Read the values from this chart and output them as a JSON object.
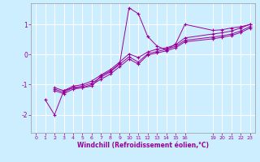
{
  "xlabel": "Windchill (Refroidissement éolien,°C)",
  "background_color": "#cceeff",
  "line_color": "#990099",
  "grid_color": "#aaddcc",
  "xlim": [
    -0.5,
    23.5
  ],
  "ylim": [
    -2.6,
    1.7
  ],
  "yticks": [
    -2,
    -1,
    0,
    1
  ],
  "xticks": [
    0,
    1,
    2,
    3,
    4,
    5,
    6,
    7,
    8,
    9,
    10,
    11,
    12,
    13,
    14,
    15,
    16,
    19,
    20,
    21,
    22,
    23
  ],
  "series": [
    {
      "x": [
        1,
        2,
        3,
        4,
        5,
        6,
        7,
        8,
        9,
        10,
        11,
        12,
        13,
        14,
        15,
        16,
        19,
        20,
        21,
        22,
        23
      ],
      "y": [
        -1.5,
        -2.0,
        -1.2,
        -1.1,
        -1.1,
        -1.05,
        -0.7,
        -0.55,
        -0.3,
        1.55,
        1.35,
        0.6,
        0.28,
        0.15,
        0.35,
        1.0,
        0.8,
        0.82,
        0.88,
        0.92,
        1.0
      ]
    },
    {
      "x": [
        2,
        3,
        4,
        5,
        6,
        7,
        8,
        9,
        10,
        11,
        12,
        13,
        14,
        15,
        16,
        19,
        20,
        21,
        22,
        23
      ],
      "y": [
        -1.1,
        -1.2,
        -1.05,
        -1.0,
        -0.88,
        -0.68,
        -0.5,
        -0.25,
        0.02,
        -0.1,
        0.08,
        0.18,
        0.22,
        0.32,
        0.55,
        0.68,
        0.72,
        0.78,
        0.88,
        1.0
      ]
    },
    {
      "x": [
        2,
        3,
        4,
        5,
        6,
        7,
        8,
        9,
        10,
        11,
        12,
        13,
        14,
        15,
        16,
        19,
        20,
        21,
        22,
        23
      ],
      "y": [
        -1.15,
        -1.25,
        -1.1,
        -1.05,
        -0.95,
        -0.75,
        -0.58,
        -0.32,
        -0.08,
        -0.25,
        0.02,
        0.1,
        0.17,
        0.27,
        0.47,
        0.58,
        0.62,
        0.68,
        0.78,
        0.93
      ]
    },
    {
      "x": [
        2,
        3,
        4,
        5,
        6,
        7,
        8,
        9,
        10,
        11,
        12,
        13,
        14,
        15,
        16,
        19,
        20,
        21,
        22,
        23
      ],
      "y": [
        -1.2,
        -1.3,
        -1.15,
        -1.1,
        -1.0,
        -0.82,
        -0.65,
        -0.4,
        -0.15,
        -0.32,
        -0.02,
        0.05,
        0.12,
        0.22,
        0.42,
        0.52,
        0.57,
        0.63,
        0.73,
        0.88
      ]
    }
  ]
}
